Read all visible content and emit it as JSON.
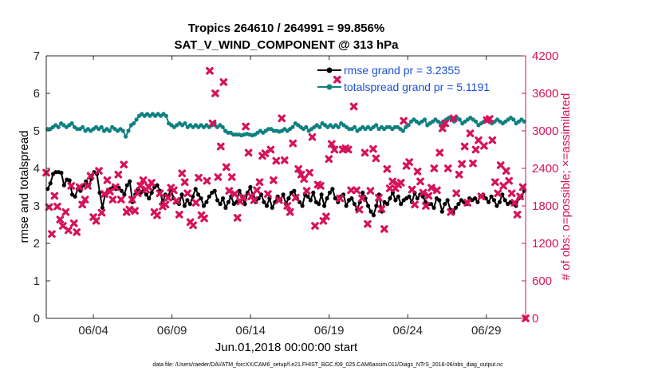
{
  "chart_data": {
    "type": "line",
    "title_line1": "Tropics 264610 / 264991 = 99.856%",
    "title_line2": "SAT_V_WIND_COMPONENT @ 313 hPa",
    "ylabel_left": "rmse and totalspread",
    "ylabel_right": "# of obs: o=possible; ×=assimilated",
    "xlabel": "Jun.01,2018 00:00:00 start",
    "footer": "data file: /Users/raeder/DAI/ATM_forcXX/CAM6_setup/f.e21.FHIST_BGC.f09_025.CAM6assim.011/Diags_NTrS_2018-06/obs_diag_output.nc",
    "ylim_left": [
      0,
      7
    ],
    "ylim_right": [
      0,
      4200
    ],
    "xlim_days": [
      0,
      30.5
    ],
    "left_ticks": [
      "0",
      "1",
      "2",
      "3",
      "4",
      "5",
      "6",
      "7"
    ],
    "right_ticks": [
      "0",
      "600",
      "1200",
      "1800",
      "2400",
      "3000",
      "3600",
      "4200"
    ],
    "x_ticks": [
      {
        "day": 3,
        "label": "06/04"
      },
      {
        "day": 8,
        "label": "06/09"
      },
      {
        "day": 13,
        "label": "06/14"
      },
      {
        "day": 18,
        "label": "06/19"
      },
      {
        "day": 23,
        "label": "06/24"
      },
      {
        "day": 28,
        "label": "06/29"
      }
    ],
    "colors": {
      "rmse": "#000000",
      "spread": "#0f8080",
      "obs": "#d6125a"
    },
    "series": [
      {
        "name": "rmse grand pr = 3.2355",
        "key": "rmse",
        "values": [
          3.45,
          3.6,
          3.85,
          3.9,
          3.9,
          3.88,
          3.55,
          3.7,
          3.68,
          3.3,
          3.25,
          3.45,
          3.4,
          3.55,
          3.65,
          3.55,
          3.72,
          3.9,
          3.85,
          3.35,
          2.95,
          3.3,
          3.4,
          3.45,
          3.5,
          3.45,
          3.48,
          3.4,
          3.3,
          3.55,
          3.65,
          3.1,
          3.3,
          3.45,
          3.35,
          3.4,
          3.3,
          3.2,
          3.35,
          3.5,
          3.55,
          3.4,
          3.1,
          3.3,
          3.25,
          3.45,
          3.2,
          3.1,
          3.05,
          3.3,
          3.0,
          3.15,
          3.05,
          3.25,
          3.45,
          3.3,
          3.2,
          3.0,
          3.1,
          3.25,
          3.35,
          3.4,
          3.15,
          3.05,
          3.2,
          2.95,
          3.1,
          3.25,
          3.05,
          3.1,
          3.4,
          3.25,
          3.05,
          3.35,
          3.5,
          3.25,
          3.1,
          3.2,
          3.3,
          3.1,
          3.0,
          3.2,
          2.95,
          3.1,
          3.25,
          3.15,
          3.3,
          3.05,
          3.2,
          3.35,
          3.4,
          3.2,
          3.1,
          3.0,
          3.3,
          3.25,
          3.15,
          3.35,
          3.1,
          3.05,
          3.3,
          3.0,
          3.2,
          3.35,
          3.45,
          3.2,
          3.1,
          3.25,
          3.3,
          3.0,
          3.15,
          3.2,
          3.05,
          2.9,
          3.1,
          3.35,
          3.2,
          3.0,
          2.85,
          2.75,
          3.0,
          3.3,
          2.85,
          3.1,
          3.05,
          3.2,
          3.35,
          3.15,
          3.25,
          3.05,
          3.15,
          3.2,
          3.25,
          3.1,
          3.35,
          3.2,
          3.3,
          3.25,
          3.1,
          3.05,
          3.05,
          2.95,
          3.2,
          3.15,
          2.85,
          3.05,
          3.15,
          2.9,
          2.8,
          2.95,
          3.05,
          3.15,
          3.1,
          3.05,
          3.2,
          3.15,
          3.2,
          3.1,
          3.25,
          3.3,
          3.2,
          3.1,
          3.25,
          3.15,
          3.0,
          3.1,
          3.3,
          3.15,
          3.05,
          3.1,
          3.05,
          3.0,
          3.2,
          3.25,
          3.4
        ]
      },
      {
        "name": "totalspread grand pr = 5.1191",
        "key": "spread",
        "values": [
          5.05,
          5.05,
          5.1,
          5.15,
          5.1,
          5.2,
          5.15,
          5.1,
          5.15,
          5.2,
          5.1,
          5.05,
          5.05,
          5.1,
          5.0,
          5.05,
          5.0,
          5.05,
          5.1,
          5.05,
          5.1,
          5.0,
          5.05,
          5.0,
          5.1,
          5.05,
          5.0,
          5.05,
          5.0,
          4.85,
          5.0,
          5.15,
          5.2,
          5.3,
          5.4,
          5.45,
          5.4,
          5.45,
          5.4,
          5.45,
          5.4,
          5.45,
          5.4,
          5.45,
          5.4,
          5.2,
          5.15,
          5.1,
          5.15,
          5.2,
          5.15,
          5.2,
          5.1,
          5.15,
          5.1,
          5.15,
          5.1,
          5.15,
          5.1,
          5.15,
          5.1,
          5.15,
          5.2,
          5.1,
          5.15,
          5.1,
          5.0,
          4.95,
          4.95,
          4.9,
          4.9,
          4.9,
          4.88,
          4.9,
          4.92,
          4.9,
          4.88,
          4.9,
          4.95,
          5.0,
          4.95,
          5.0,
          5.05,
          5.05,
          5.0,
          5.0,
          4.98,
          5.0,
          5.05,
          5.0,
          5.05,
          5.1,
          5.2,
          5.15,
          5.1,
          5.05,
          5.1,
          5.0,
          5.05,
          5.1,
          5.15,
          5.1,
          5.2,
          5.15,
          5.1,
          5.15,
          5.1,
          5.15,
          5.1,
          5.2,
          5.15,
          5.1,
          5.05,
          5.05,
          5.1,
          5.0,
          5.05,
          5.1,
          5.05,
          5.1,
          5.05,
          5.1,
          5.15,
          5.05,
          5.1,
          5.05,
          5.1,
          5.1,
          5.05,
          5.1,
          5.1,
          5.05,
          5.0,
          5.1,
          5.15,
          5.25,
          5.3,
          5.25,
          5.2,
          5.25,
          5.3,
          5.15,
          5.2,
          5.25,
          5.3,
          5.25,
          5.2,
          5.25,
          5.3,
          5.35,
          5.3,
          5.25,
          5.35,
          5.3,
          5.2,
          5.25,
          5.3,
          5.35,
          5.3,
          5.25,
          5.15,
          5.2,
          5.25,
          5.3,
          5.25,
          5.2,
          5.25,
          5.3,
          5.25,
          5.2,
          5.25,
          5.3,
          5.35,
          5.3,
          5.2,
          5.25,
          5.3,
          5.25
        ]
      }
    ],
    "obs_assimilated": [
      2330,
      1780,
      1350,
      1960,
      1790,
      1580,
      1480,
      1700,
      1410,
      2120,
      1520,
      1380,
      2100,
      1820,
      1900,
      2120,
      2280,
      1620,
      1560,
      2360,
      1690,
      1990,
      2210,
      2030,
      1900,
      2100,
      2300,
      1900,
      2460,
      1700,
      1740,
      1900,
      1720,
      2000,
      2120,
      2210,
      2060,
      2100,
      2170,
      1700,
      1650,
      2000,
      1790,
      1820,
      1930,
      2090,
      2050,
      1880,
      1660,
      2320,
      2180,
      2000,
      1540,
      1490,
      1850,
      2250,
      1650,
      1600,
      2200,
      3960,
      3120,
      3600,
      2260,
      2750,
      3780,
      2420,
      2040,
      2260,
      1990,
      1610,
      1870,
      1930,
      3070,
      2650,
      1950,
      1890,
      2050,
      2180,
      2600,
      2640,
      1990,
      2700,
      2210,
      2520,
      1890,
      3200,
      2530,
      1800,
      1700,
      2800,
      1930,
      2390,
      2300,
      2230,
      2040,
      2330,
      2900,
      1480,
      2140,
      2120,
      1560,
      1630,
      2550,
      2790,
      2700,
      3820,
      1920,
      2700,
      2720,
      2700,
      2050,
      3390,
      2050,
      1740,
      1920,
      2650,
      1510,
      2040,
      2710,
      2560,
      1930,
      1750,
      1430,
      2390,
      2080,
      2190,
      2080,
      2140,
      2170,
      3160,
      2440,
      2500,
      2060,
      1820,
      2350,
      2190,
      2010,
      1800,
      1960,
      2090,
      2400,
      2050,
      2650,
      3040,
      3120,
      2400,
      1700,
      3200,
      2000,
      2300,
      2470,
      2750,
      1850,
      2960,
      2480,
      2700,
      2850,
      1950,
      2760,
      3170,
      3190,
      2850,
      2180,
      2000,
      2450,
      2120,
      2360,
      2200,
      2000,
      1850,
      1660,
      1950,
      2100,
      0
    ]
  },
  "legend": {
    "rmse_label": "rmse grand pr = 3.2355",
    "spread_label": "totalspread grand pr = 5.1191"
  }
}
